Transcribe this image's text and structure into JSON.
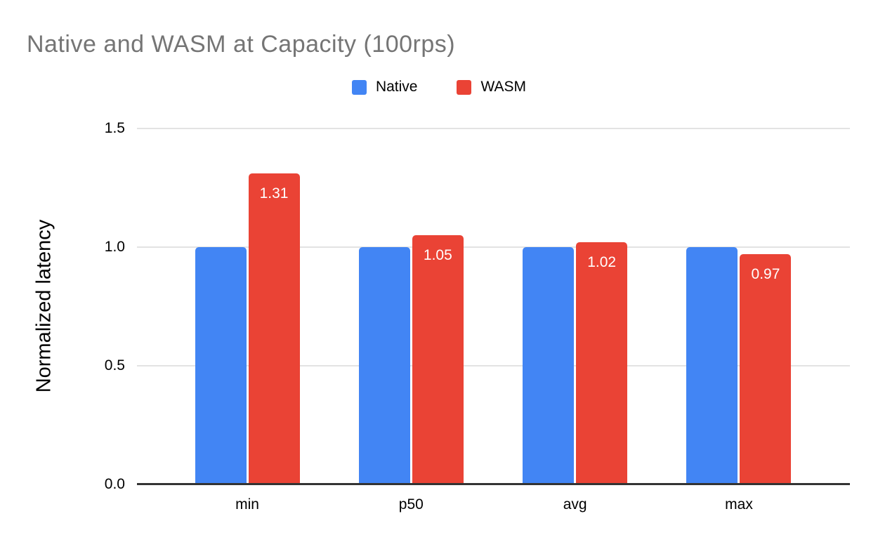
{
  "title": "Native and WASM at Capacity (100rps)",
  "legend": {
    "items": [
      {
        "label": "Native",
        "color": "#4285F4"
      },
      {
        "label": "WASM",
        "color": "#EA4335"
      }
    ]
  },
  "chart_data": {
    "type": "bar",
    "title": "Native and WASM at Capacity (100rps)",
    "categories": [
      "min",
      "p50",
      "avg",
      "max"
    ],
    "series": [
      {
        "name": "Native",
        "color": "#4285F4",
        "values": [
          1.0,
          1.0,
          1.0,
          1.0
        ],
        "labels": [
          "",
          "",
          "",
          ""
        ]
      },
      {
        "name": "WASM",
        "color": "#EA4335",
        "values": [
          1.31,
          1.05,
          1.02,
          0.97
        ],
        "labels": [
          "1.31",
          "1.05",
          "1.02",
          "0.97"
        ]
      }
    ],
    "xlabel": "",
    "ylabel": "Normalized latency",
    "ylim": [
      0,
      1.5
    ],
    "yticks": [
      {
        "value": 0.0,
        "label": "0.0"
      },
      {
        "value": 0.5,
        "label": "0.5"
      },
      {
        "value": 1.0,
        "label": "1.0"
      },
      {
        "value": 1.5,
        "label": "1.5"
      }
    ],
    "grid": true,
    "legend_position": "top",
    "bar_label_color": "#ffffff"
  },
  "colors": {
    "title_text": "#757575",
    "axis_text": "#000000",
    "gridline": "#e3e3e3",
    "baseline": "#333333",
    "background": "#ffffff"
  }
}
